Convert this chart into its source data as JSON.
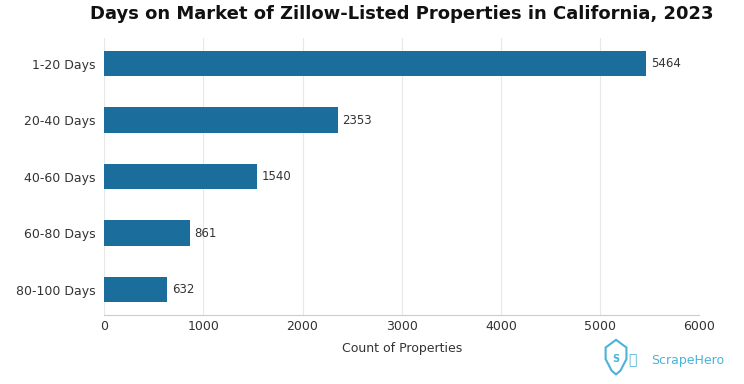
{
  "title": "Days on Market of Zillow-Listed Properties in California, 2023",
  "categories": [
    "1-20 Days",
    "20-40 Days",
    "40-60 Days",
    "60-80 Days",
    "80-100 Days"
  ],
  "values": [
    5464,
    2353,
    1540,
    861,
    632
  ],
  "bar_color": "#1b6d9c",
  "xlabel": "Count of Properties",
  "xlim": [
    0,
    6000
  ],
  "xticks": [
    0,
    1000,
    2000,
    3000,
    4000,
    5000,
    6000
  ],
  "background_color": "#ffffff",
  "title_fontsize": 13,
  "label_fontsize": 9,
  "tick_fontsize": 9,
  "ytick_fontsize": 9,
  "value_label_fontsize": 8.5,
  "bar_height": 0.45,
  "scrape_hero_text": "ScrapeHero",
  "scrape_hero_color": "#4ab3d8",
  "text_color": "#333333",
  "grid_color": "#e8e8e8",
  "spine_color": "#cccccc"
}
